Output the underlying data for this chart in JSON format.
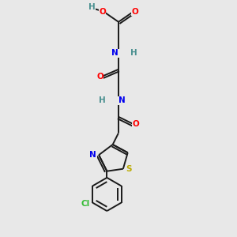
{
  "bg_color": "#e8e8e8",
  "bond_color": "#1a1a1a",
  "atom_colors": {
    "O": "#ff0000",
    "N": "#0000ee",
    "S": "#bbaa00",
    "Cl": "#33bb33",
    "H": "#4a9090",
    "C": "#1a1a1a"
  },
  "font_size": 7.5,
  "line_width": 1.4,
  "xlim": [
    0,
    10
  ],
  "ylim": [
    0,
    10
  ]
}
